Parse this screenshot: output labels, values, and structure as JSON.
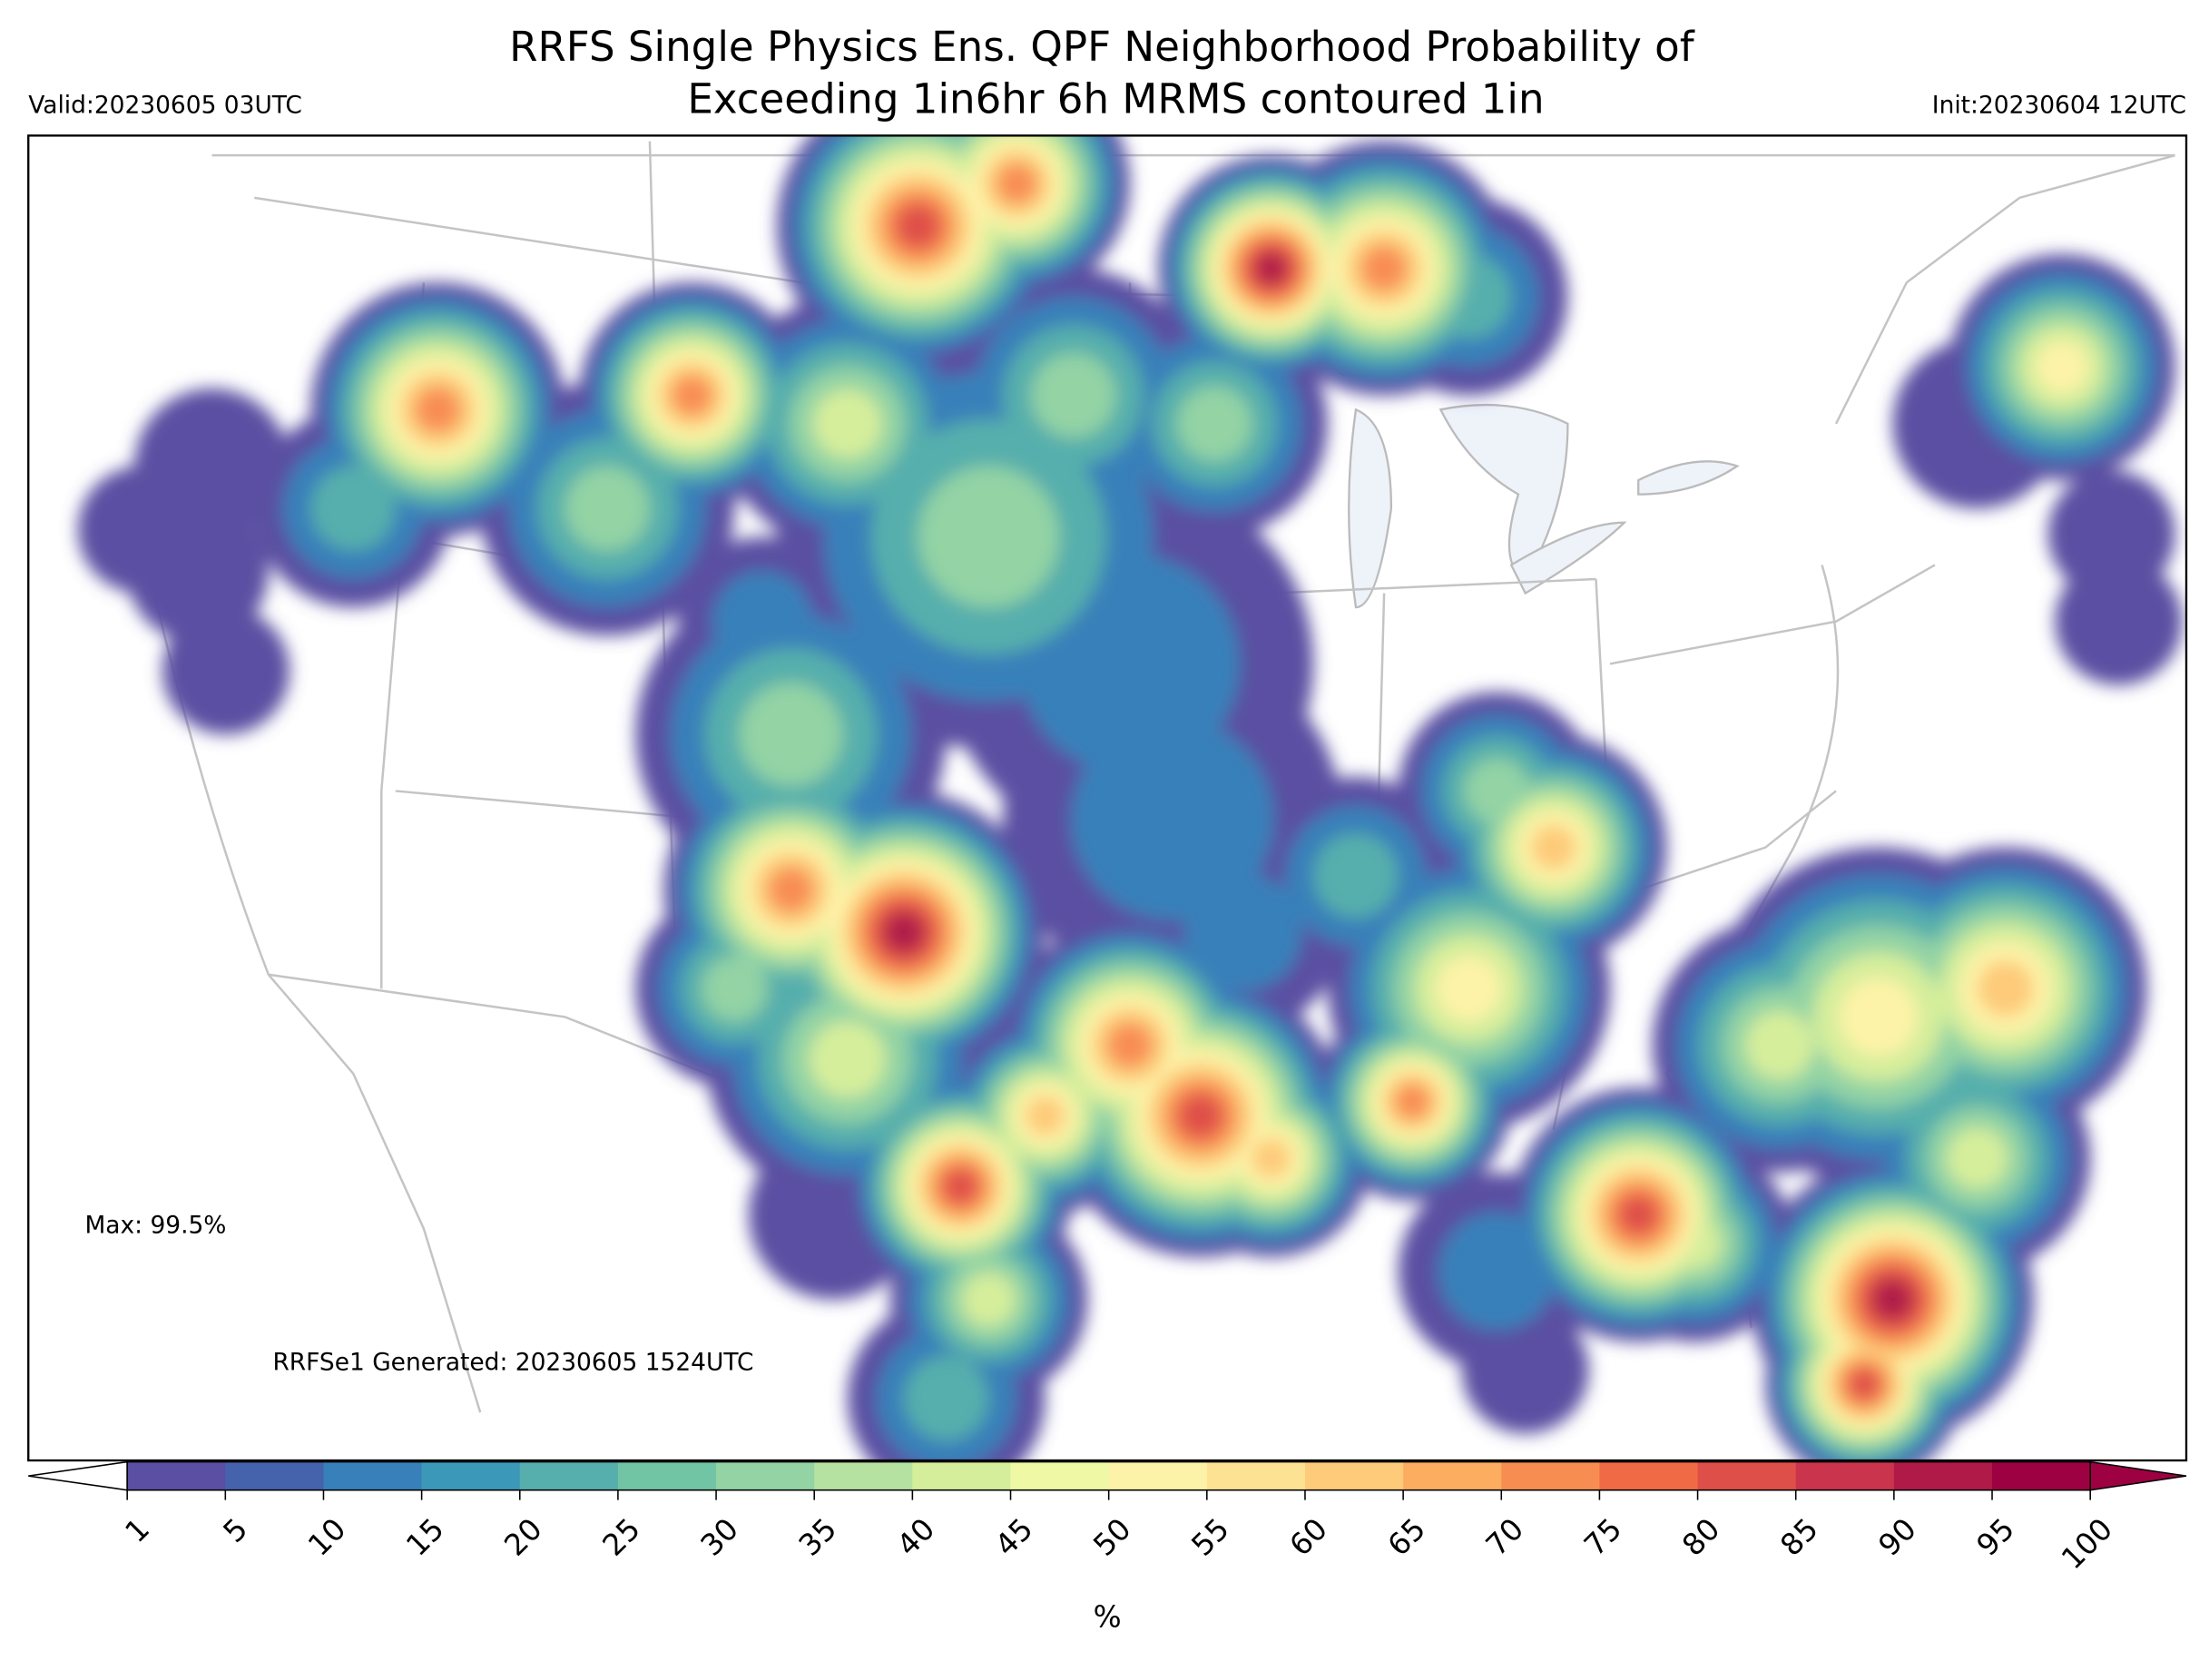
{
  "header": {
    "title_line1": "RRFS Single Physics Ens. QPF Neighborhood Probability of",
    "title_line2": "Exceeding 1in6hr 6h MRMS contoured 1in",
    "valid": "Valid:20230605 03UTC",
    "init": "Init:20230604 12UTC"
  },
  "map": {
    "max_label": "Max: 99.5%",
    "generated": "RRFSe1 Generated: 20230605 1524UTC"
  },
  "colorbar": {
    "ticks": [
      1,
      5,
      10,
      15,
      20,
      25,
      30,
      35,
      40,
      45,
      50,
      55,
      60,
      65,
      70,
      75,
      80,
      85,
      90,
      95,
      100
    ],
    "colors": [
      "#5a4fa2",
      "#4563ad",
      "#3880b9",
      "#3c98b8",
      "#56afac",
      "#71c4a4",
      "#93d3a4",
      "#b5e1a1",
      "#d5ee9b",
      "#eef8a5",
      "#fdf3a8",
      "#fee293",
      "#fdcb79",
      "#fcad60",
      "#f88d52",
      "#f06b45",
      "#df4f4a",
      "#ca344d",
      "#b01a49",
      "#9e0142"
    ],
    "extend_max_color": "#9e0142",
    "label": "%"
  }
}
